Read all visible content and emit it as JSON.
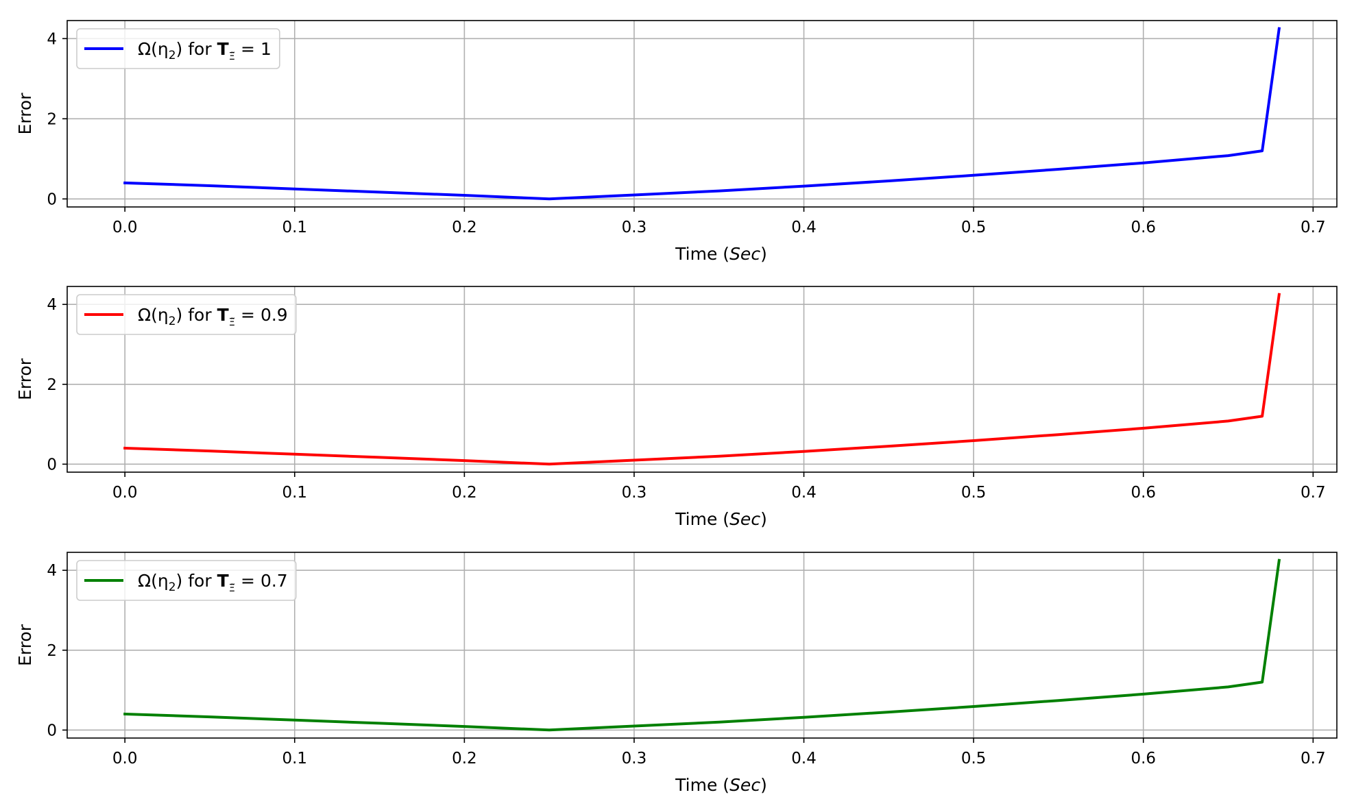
{
  "chart_data": [
    {
      "type": "line",
      "xlabel": "Time (Sec)",
      "ylabel": "Error",
      "xlim": [
        -0.034,
        0.714
      ],
      "ylim": [
        -0.2,
        4.45
      ],
      "xticks": [
        0.0,
        0.1,
        0.2,
        0.3,
        0.4,
        0.5,
        0.6,
        0.7
      ],
      "xtick_labels": [
        "0.0",
        "0.1",
        "0.2",
        "0.3",
        "0.4",
        "0.5",
        "0.6",
        "0.7"
      ],
      "yticks": [
        0,
        2,
        4
      ],
      "ytick_labels": [
        "0",
        "2",
        "4"
      ],
      "grid": true,
      "legend_position": "top-left",
      "series": [
        {
          "name": "Ω(η₂) for T_Ξ = 1",
          "legend_prefix": "Ω(η",
          "legend_sub": "2",
          "legend_mid": ") for ",
          "legend_bold": "T",
          "legend_bold_sub": "Ξ̃",
          "legend_suffix": " = 1",
          "color": "#0000ff",
          "x": [
            0.0,
            0.05,
            0.1,
            0.15,
            0.2,
            0.25,
            0.3,
            0.35,
            0.4,
            0.45,
            0.5,
            0.55,
            0.6,
            0.65,
            0.67,
            0.68
          ],
          "y": [
            0.4,
            0.33,
            0.25,
            0.17,
            0.09,
            0.0,
            0.1,
            0.2,
            0.32,
            0.45,
            0.59,
            0.74,
            0.9,
            1.08,
            1.2,
            4.25
          ]
        }
      ]
    },
    {
      "type": "line",
      "xlabel": "Time (Sec)",
      "ylabel": "Error",
      "xlim": [
        -0.034,
        0.714
      ],
      "ylim": [
        -0.2,
        4.45
      ],
      "xticks": [
        0.0,
        0.1,
        0.2,
        0.3,
        0.4,
        0.5,
        0.6,
        0.7
      ],
      "xtick_labels": [
        "0.0",
        "0.1",
        "0.2",
        "0.3",
        "0.4",
        "0.5",
        "0.6",
        "0.7"
      ],
      "yticks": [
        0,
        2,
        4
      ],
      "ytick_labels": [
        "0",
        "2",
        "4"
      ],
      "grid": true,
      "legend_position": "top-left",
      "series": [
        {
          "name": "Ω(η₂) for T_Ξ = 0.9",
          "legend_prefix": "Ω(η",
          "legend_sub": "2",
          "legend_mid": ") for ",
          "legend_bold": "T",
          "legend_bold_sub": "Ξ̃",
          "legend_suffix": " = 0.9",
          "color": "#ff0000",
          "x": [
            0.0,
            0.05,
            0.1,
            0.15,
            0.2,
            0.25,
            0.3,
            0.35,
            0.4,
            0.45,
            0.5,
            0.55,
            0.6,
            0.65,
            0.67,
            0.68
          ],
          "y": [
            0.4,
            0.33,
            0.25,
            0.17,
            0.09,
            0.0,
            0.1,
            0.2,
            0.32,
            0.45,
            0.59,
            0.74,
            0.9,
            1.08,
            1.2,
            4.25
          ]
        }
      ]
    },
    {
      "type": "line",
      "xlabel": "Time (Sec)",
      "ylabel": "Error",
      "xlim": [
        -0.034,
        0.714
      ],
      "ylim": [
        -0.2,
        4.45
      ],
      "xticks": [
        0.0,
        0.1,
        0.2,
        0.3,
        0.4,
        0.5,
        0.6,
        0.7
      ],
      "xtick_labels": [
        "0.0",
        "0.1",
        "0.2",
        "0.3",
        "0.4",
        "0.5",
        "0.6",
        "0.7"
      ],
      "yticks": [
        0,
        2,
        4
      ],
      "ytick_labels": [
        "0",
        "2",
        "4"
      ],
      "grid": true,
      "legend_position": "top-left",
      "series": [
        {
          "name": "Ω(η₂) for T_Ξ = 0.7",
          "legend_prefix": "Ω(η",
          "legend_sub": "2",
          "legend_mid": ") for ",
          "legend_bold": "T",
          "legend_bold_sub": "Ξ̃",
          "legend_suffix": " = 0.7",
          "color": "#008000",
          "x": [
            0.0,
            0.05,
            0.1,
            0.15,
            0.2,
            0.25,
            0.3,
            0.35,
            0.4,
            0.45,
            0.5,
            0.55,
            0.6,
            0.65,
            0.67,
            0.68
          ],
          "y": [
            0.4,
            0.33,
            0.25,
            0.17,
            0.09,
            0.0,
            0.1,
            0.2,
            0.32,
            0.45,
            0.59,
            0.74,
            0.9,
            1.08,
            1.2,
            4.25
          ]
        }
      ]
    }
  ]
}
